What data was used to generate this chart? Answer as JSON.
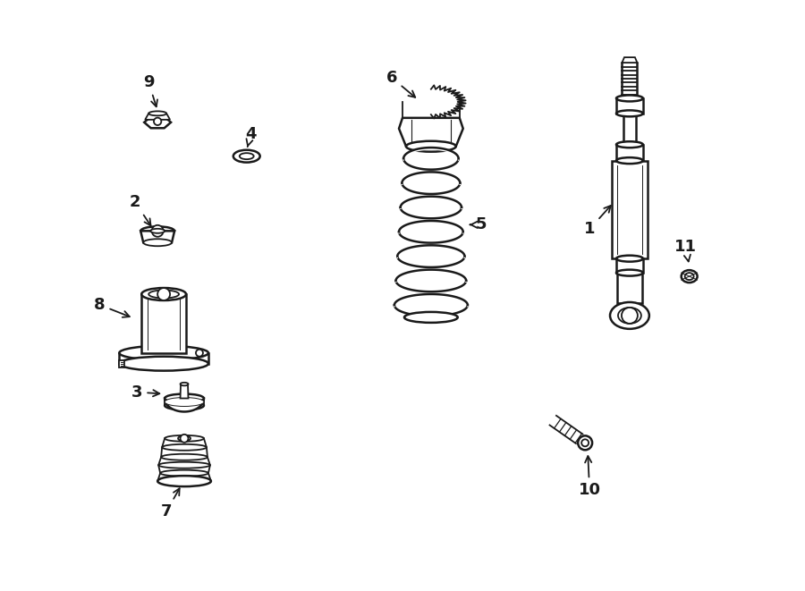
{
  "bg_color": "#ffffff",
  "line_color": "#1a1a1a",
  "lw": 1.3,
  "lw2": 1.8,
  "fs": 13,
  "fig_w": 9.0,
  "fig_h": 6.61
}
